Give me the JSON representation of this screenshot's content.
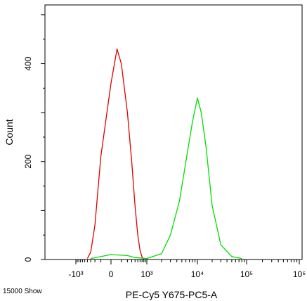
{
  "chart_data": {
    "type": "line",
    "title": "",
    "xlabel": "PE-Cy5 Y675-PC5-A",
    "ylabel": "Count",
    "x_scale": "logicle",
    "y_range": [
      0,
      520
    ],
    "y_ticks": [
      {
        "value": 0,
        "label": "0"
      },
      {
        "value": 200,
        "label": "200"
      },
      {
        "value": 400,
        "label": "400"
      }
    ],
    "x_ticks": [
      {
        "value": -1000,
        "label": "-10³"
      },
      {
        "value": 0,
        "label": "0"
      },
      {
        "value": 1000,
        "label": "10³"
      },
      {
        "value": 10000,
        "label": "10⁴"
      },
      {
        "value": 100000,
        "label": "10⁵"
      },
      {
        "value": 1000000,
        "label": "10⁶"
      }
    ],
    "series": [
      {
        "color": "#e00000",
        "x": [
          -400,
          -300,
          -200,
          -100,
          0,
          50,
          100,
          200,
          300,
          400,
          500,
          600,
          700,
          800
        ],
        "y": [
          2,
          15,
          70,
          210,
          360,
          430,
          400,
          300,
          200,
          110,
          50,
          18,
          5,
          1
        ]
      },
      {
        "color": "#00dd00",
        "x": [
          -300,
          0,
          200,
          400,
          1000,
          2000,
          3000,
          4500,
          6000,
          8000,
          10000,
          12000,
          15000,
          20000,
          30000,
          50000,
          80000
        ],
        "y": [
          2,
          10,
          8,
          4,
          2,
          12,
          50,
          120,
          200,
          280,
          330,
          300,
          230,
          110,
          30,
          6,
          2
        ]
      }
    ]
  },
  "footer_text": "15000 Show"
}
